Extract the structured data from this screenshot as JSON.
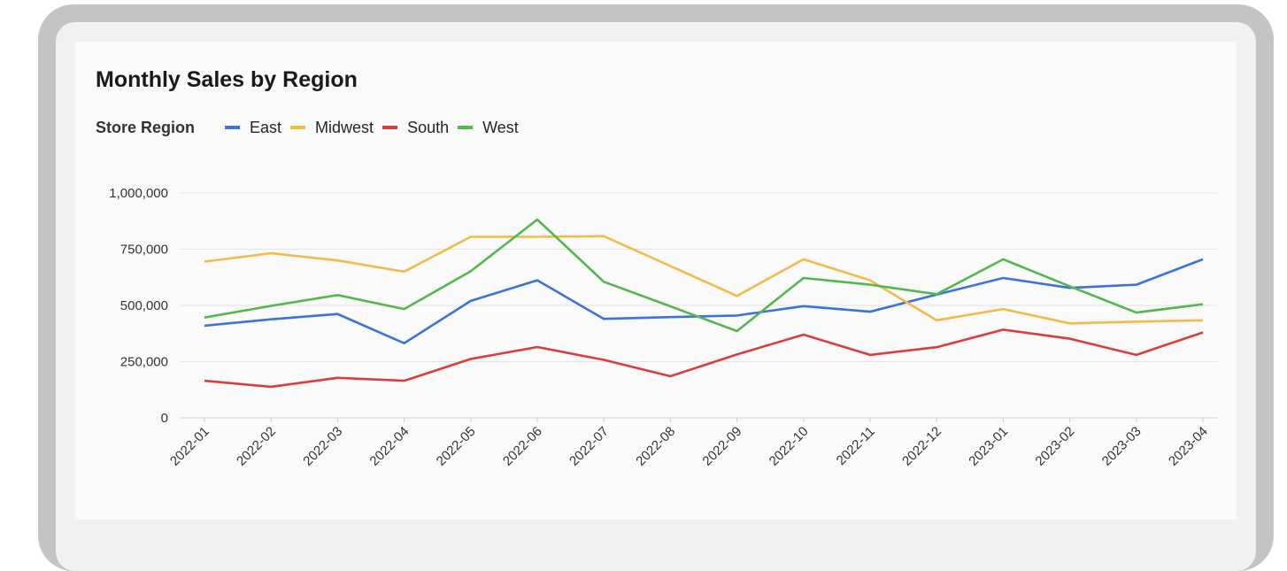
{
  "chart_data": {
    "type": "line",
    "title": "Monthly Sales by Region",
    "legend_title": "Store Region",
    "legend_position": "top-left",
    "grid": true,
    "xlabel": "",
    "ylabel": "",
    "ylim": [
      0,
      1000000
    ],
    "yticks": [
      0,
      250000,
      500000,
      750000,
      1000000
    ],
    "ytick_labels": [
      "0",
      "250,000",
      "500,000",
      "750,000",
      "1,000,000"
    ],
    "x": [
      "2022-01",
      "2022-02",
      "2022-03",
      "2022-04",
      "2022-05",
      "2022-06",
      "2022-07",
      "2022-08",
      "2022-09",
      "2022-10",
      "2022-11",
      "2022-12",
      "2023-01",
      "2023-02",
      "2023-03",
      "2023-04"
    ],
    "series": [
      {
        "name": "East",
        "color": "#3b73d9",
        "values": [
          410000,
          438000,
          462000,
          332000,
          520000,
          612000,
          440000,
          448000,
          455000,
          497000,
          472000,
          548000,
          622000,
          578000,
          592000,
          705000
        ]
      },
      {
        "name": "Midwest",
        "color": "#f2bb49",
        "values": [
          695000,
          732000,
          700000,
          650000,
          805000,
          805000,
          808000,
          675000,
          542000,
          705000,
          612000,
          434000,
          484000,
          420000,
          428000,
          434000
        ]
      },
      {
        "name": "South",
        "color": "#dc3d3b",
        "values": [
          165000,
          138000,
          178000,
          165000,
          262000,
          315000,
          258000,
          185000,
          282000,
          370000,
          280000,
          314000,
          392000,
          352000,
          280000,
          380000
        ]
      },
      {
        "name": "West",
        "color": "#52b84b",
        "values": [
          446000,
          498000,
          546000,
          484000,
          652000,
          882000,
          605000,
          496000,
          386000,
          622000,
          592000,
          550000,
          705000,
          585000,
          468000,
          505000
        ]
      }
    ]
  }
}
